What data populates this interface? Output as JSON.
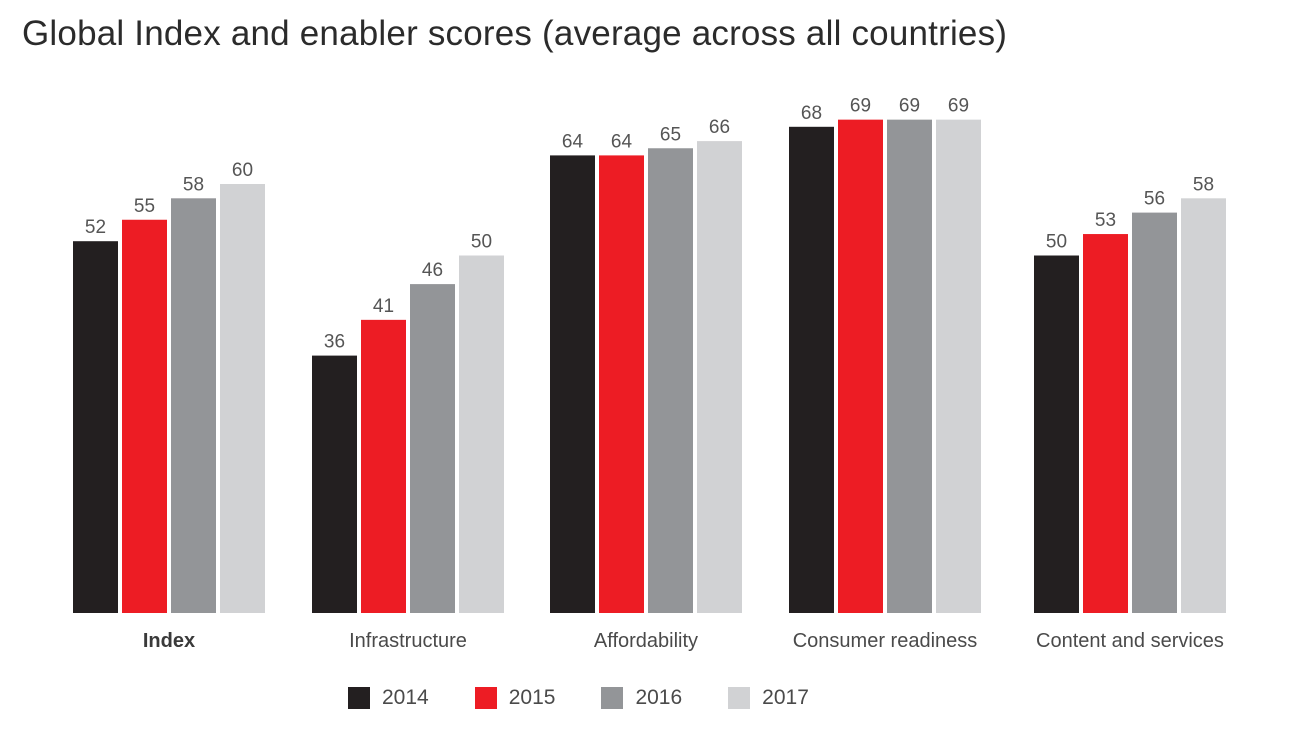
{
  "title": "Global Index and enabler scores (average across all countries)",
  "colors": {
    "2014": "#231f20",
    "2015": "#ed1c24",
    "2016": "#939598",
    "2017": "#d1d2d4"
  },
  "legend": [
    {
      "label": "2014",
      "color": "#231f20"
    },
    {
      "label": "2015",
      "color": "#ed1c24"
    },
    {
      "label": "2016",
      "color": "#939598"
    },
    {
      "label": "2017",
      "color": "#d1d2d4"
    }
  ],
  "chart_data": {
    "type": "bar",
    "title": "Global Index and enabler scores (average across all countries)",
    "categories": [
      "Index",
      "Infrastructure",
      "Affordability",
      "Consumer readiness",
      "Content and services"
    ],
    "bold_categories": [
      "Index"
    ],
    "series": [
      {
        "name": "2014",
        "color": "#231f20",
        "values": [
          52,
          36,
          64,
          68,
          50
        ]
      },
      {
        "name": "2015",
        "color": "#ed1c24",
        "values": [
          55,
          41,
          64,
          69,
          53
        ]
      },
      {
        "name": "2016",
        "color": "#939598",
        "values": [
          58,
          46,
          65,
          69,
          56
        ]
      },
      {
        "name": "2017",
        "color": "#d1d2d4",
        "values": [
          60,
          50,
          66,
          69,
          58
        ]
      }
    ],
    "xlabel": "",
    "ylabel": "",
    "ylim": [
      0,
      69
    ],
    "grid": false,
    "data_labels": true,
    "legend_position": "bottom"
  }
}
